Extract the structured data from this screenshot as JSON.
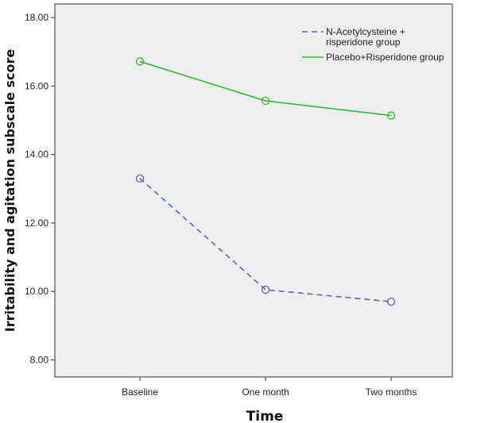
{
  "chart_data": {
    "type": "line",
    "title": "",
    "xlabel": "Time",
    "ylabel": "Irritability and agitation subscale score",
    "categories": [
      "Baseline",
      "One month",
      "Two months"
    ],
    "ylim": [
      7.5,
      18.4
    ],
    "yticks": [
      8.0,
      10.0,
      12.0,
      14.0,
      16.0,
      18.0
    ],
    "ytick_labels": [
      "8.00",
      "10.00",
      "12.00",
      "14.00",
      "16.00",
      "18.00"
    ],
    "grid": false,
    "legend_position": "top-right",
    "series": [
      {
        "name": "N-Acetylcysteine + risperidone group",
        "legend_lines": [
          "N-Acetylcysteine +",
          "risperidone group"
        ],
        "values": [
          13.3,
          10.05,
          9.7
        ],
        "color": "#5566bb",
        "line_style": "dashed",
        "marker": "circle"
      },
      {
        "name": "Placebo+Risperidone group",
        "legend_lines": [
          "Placebo+Risperidone group"
        ],
        "values": [
          16.72,
          15.57,
          15.14
        ],
        "color": "#33bb33",
        "line_style": "solid",
        "marker": "circle"
      }
    ],
    "plot_background": "#eeeeee"
  }
}
